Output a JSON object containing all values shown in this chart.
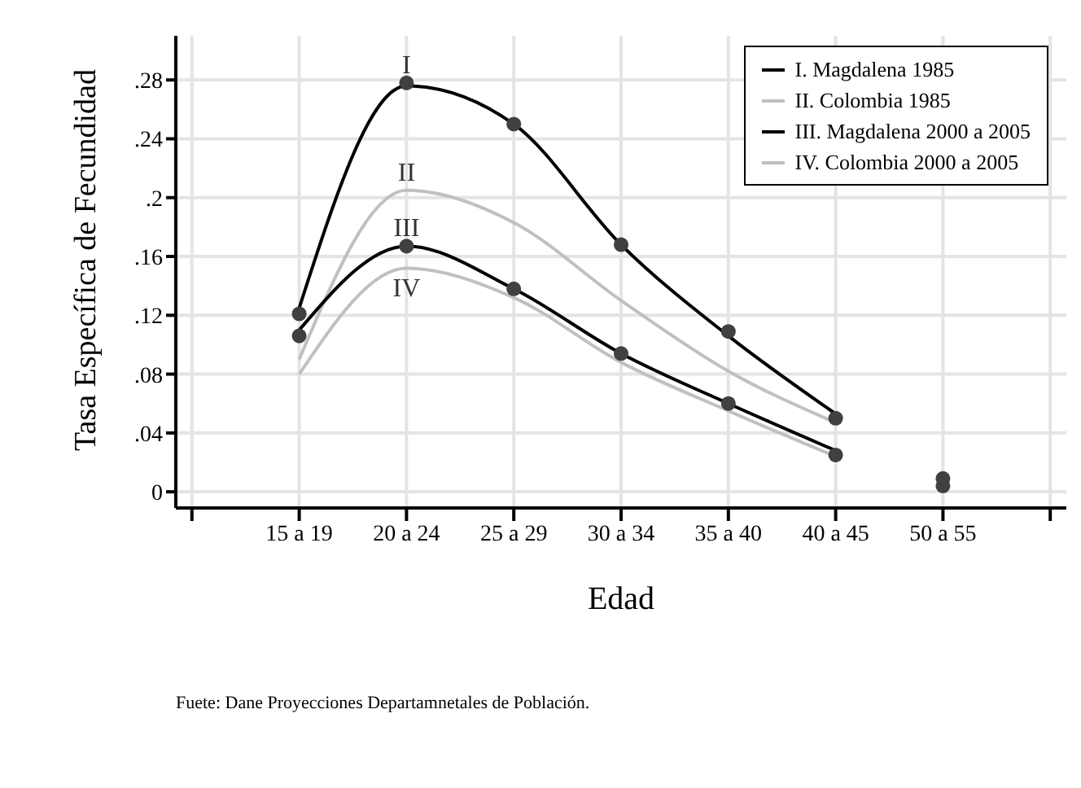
{
  "chart_data": {
    "type": "line",
    "ylabel": "Tasa Específica de Fecundidad",
    "xlabel": "Edad",
    "categories": [
      null,
      "15 a 19",
      "20 a 24",
      "25 a 29",
      "30 a 34",
      "35 a 40",
      "40 a 45",
      "50 a 55",
      null
    ],
    "ylim": [
      -0.011,
      0.31
    ],
    "yticks": [
      0,
      {
        "value": 0.04,
        "label": ".04"
      },
      {
        "value": 0.08,
        "label": ".08"
      },
      {
        "value": 0.12,
        "label": ".12"
      },
      {
        "value": 0.16,
        "label": ".16"
      },
      {
        "value": 0.2,
        "label": ".2"
      },
      {
        "value": 0.24,
        "label": ".24"
      },
      {
        "value": 0.28,
        "label": ".28"
      }
    ],
    "grid": true,
    "legend": "top right",
    "series": [
      {
        "name": "I. Magdalena 1985",
        "color": "#000000",
        "values": [
          null,
          0.125,
          0.276,
          0.25,
          0.168,
          0.106,
          0.053,
          null,
          null
        ]
      },
      {
        "name": "II. Colombia 1985",
        "color": "#c0c0c0",
        "values": [
          null,
          0.09,
          0.205,
          0.183,
          0.13,
          0.082,
          0.047,
          null,
          null
        ]
      },
      {
        "name": "III. Magdalena 2000 a 2005",
        "color": "#000000",
        "values": [
          null,
          0.11,
          0.167,
          0.138,
          0.094,
          0.06,
          0.028,
          null,
          null
        ]
      },
      {
        "name": "IV. Colombia 2000 a 2005",
        "color": "#c0c0c0",
        "values": [
          null,
          0.08,
          0.152,
          0.132,
          0.088,
          0.055,
          0.024,
          null,
          null
        ]
      },
      {
        "type": "scatter",
        "marker": "circle",
        "color": "#404040",
        "values": [
          null,
          0.121,
          0.278,
          0.25,
          0.168,
          0.109,
          0.05,
          0.009,
          null
        ]
      },
      {
        "type": "scatter",
        "marker": "circle",
        "color": "#404040",
        "values": [
          null,
          0.106,
          0.167,
          0.138,
          0.094,
          0.06,
          0.025,
          0.004,
          null
        ]
      }
    ],
    "annotations": [
      {
        "text": "I",
        "x": "20 a 24",
        "y": 0.278
      },
      {
        "text": "II",
        "x": "20 a 24",
        "y": 0.205
      },
      {
        "text": "III",
        "x": "20 a 24",
        "y": 0.167
      },
      {
        "text": "IV",
        "x": "20 a 24",
        "y": 0.152
      },
      "Fuete: Dane Proyecciones Departamnetales de Población."
    ]
  }
}
